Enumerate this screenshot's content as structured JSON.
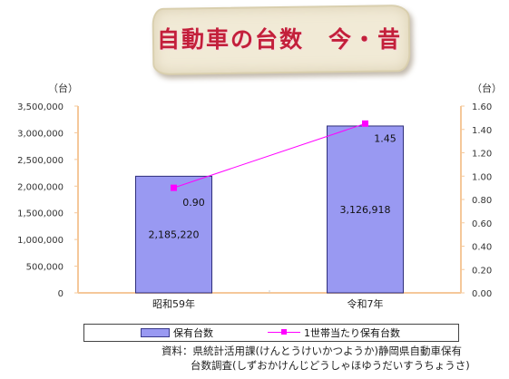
{
  "title": "自動車の台数　今・昔",
  "source": {
    "line1": "資料：県統計活用課(けんとうけいかつようか)静岡県自動車保有",
    "line2": "台数調査(しずおかけんじどうしゃほゆうだいすうちょうさ)"
  },
  "chart_data": {
    "type": "bar",
    "categories": [
      "昭和59年",
      "令和7年"
    ],
    "series": [
      {
        "name": "保有台数",
        "type": "bar",
        "axis": "left",
        "values": [
          2185220,
          3126918
        ],
        "labels": [
          "2,185,220",
          "3,126,918"
        ],
        "color": "#9999f2"
      },
      {
        "name": "1世帯当たり保有台数",
        "type": "line",
        "axis": "right",
        "values": [
          0.9,
          1.45
        ],
        "labels": [
          "0.90",
          "1.45"
        ],
        "color": "#ff00ff"
      }
    ],
    "y_left": {
      "unit": "（台）",
      "ylim": [
        0,
        3500000
      ],
      "ticks": [
        "0",
        "500,000",
        "1,000,000",
        "1,500,000",
        "2,000,000",
        "2,500,000",
        "3,000,000",
        "3,500,000"
      ]
    },
    "y_right": {
      "unit": "（台）",
      "ylim": [
        0,
        1.6
      ],
      "ticks": [
        "0.00",
        "0.20",
        "0.40",
        "0.60",
        "0.80",
        "1.00",
        "1.20",
        "1.40",
        "1.60"
      ]
    },
    "grid": false,
    "legend": "bottom"
  }
}
